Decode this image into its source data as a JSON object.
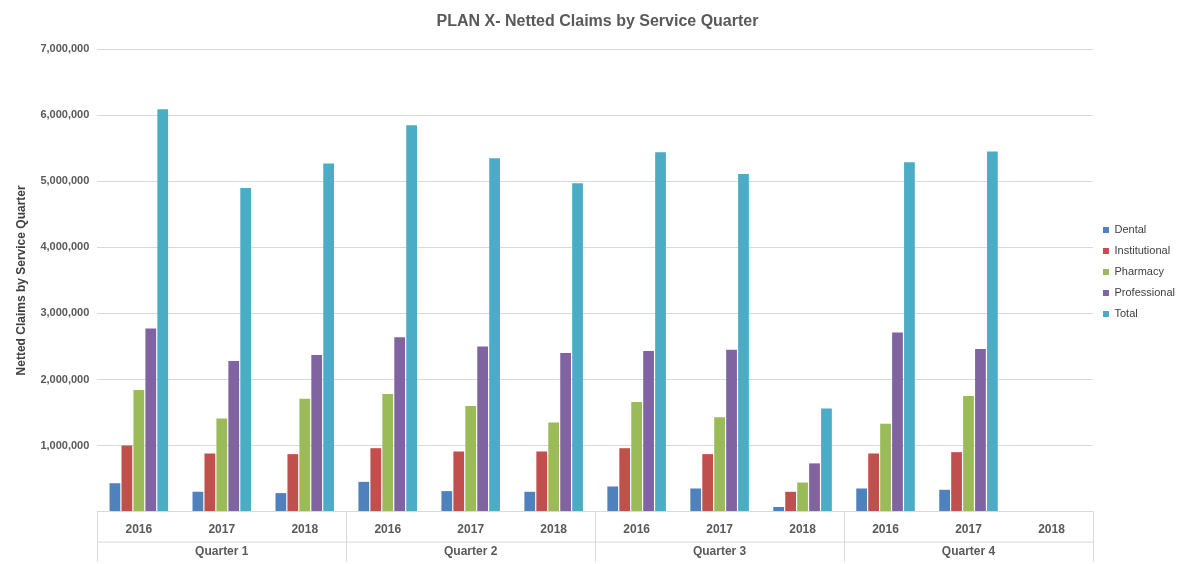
{
  "chart_data": {
    "type": "bar",
    "title": "PLAN X- Netted Claims by Service Quarter",
    "ylabel": "Netted Claims by Service Quarter",
    "categories": [
      "2016",
      "2017",
      "2018",
      "2016",
      "2017",
      "2018",
      "2016",
      "2017",
      "2018",
      "2016",
      "2017",
      "2018"
    ],
    "annotations": [
      "Quarter 1",
      "Quarter 2",
      "Quarter 3",
      "Quarter 4"
    ],
    "series": [
      {
        "name": "Dental",
        "color": "#4f81bd",
        "values": [
          430000,
          300000,
          280000,
          450000,
          310000,
          300000,
          380000,
          350000,
          70000,
          350000,
          330000,
          null
        ]
      },
      {
        "name": "Institutional",
        "color": "#c0504d",
        "values": [
          1000000,
          880000,
          870000,
          960000,
          910000,
          910000,
          960000,
          870000,
          300000,
          880000,
          900000,
          null
        ]
      },
      {
        "name": "Pharmacy",
        "color": "#9bbb59",
        "values": [
          1840000,
          1410000,
          1710000,
          1780000,
          1600000,
          1350000,
          1660000,
          1430000,
          440000,
          1330000,
          1750000,
          null
        ]
      },
      {
        "name": "Professional",
        "color": "#8064a2",
        "values": [
          2770000,
          2280000,
          2370000,
          2640000,
          2500000,
          2400000,
          2430000,
          2450000,
          730000,
          2710000,
          2460000,
          null
        ]
      },
      {
        "name": "Total",
        "color": "#4bacc6",
        "values": [
          6090000,
          4900000,
          5270000,
          5850000,
          5350000,
          4970000,
          5440000,
          5110000,
          1560000,
          5290000,
          5450000,
          null
        ]
      }
    ],
    "ylim": [
      0,
      7000000
    ],
    "yticks": [
      {
        "value": 0,
        "label": null
      },
      {
        "value": 1000000,
        "label": "1,000,000"
      },
      {
        "value": 2000000,
        "label": "2,000,000"
      },
      {
        "value": 3000000,
        "label": "3,000,000"
      },
      {
        "value": 4000000,
        "label": "4,000,000"
      },
      {
        "value": 5000000,
        "label": "5,000,000"
      },
      {
        "value": 6000000,
        "label": "6,000,000"
      },
      {
        "value": 7000000,
        "label": "7,000,000"
      }
    ],
    "grid": "y",
    "legend": "right"
  }
}
